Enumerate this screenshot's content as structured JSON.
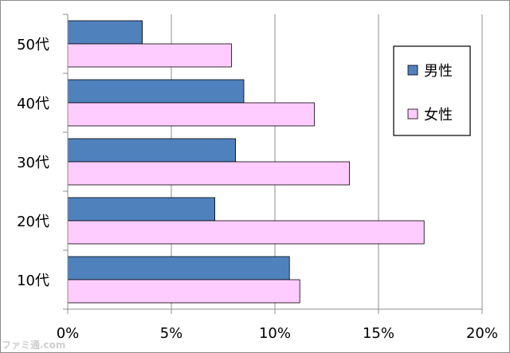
{
  "chart_data": {
    "type": "bar",
    "orientation": "horizontal",
    "categories": [
      "50代",
      "40代",
      "30代",
      "20代",
      "10代"
    ],
    "series": [
      {
        "name": "男性",
        "color": "#4f81bd",
        "values": [
          3.6,
          8.5,
          8.1,
          7.1,
          10.7
        ]
      },
      {
        "name": "女性",
        "color": "#ffccff",
        "values": [
          7.9,
          11.9,
          13.6,
          17.2,
          11.2
        ]
      }
    ],
    "xlim": [
      0,
      20
    ],
    "xticks": [
      "0%",
      "5%",
      "10%",
      "15%",
      "20%"
    ],
    "xtick_values": [
      0,
      5,
      10,
      15,
      20
    ],
    "grid": "vertical",
    "legend_position": "right"
  },
  "watermark": "ファミ通.com"
}
